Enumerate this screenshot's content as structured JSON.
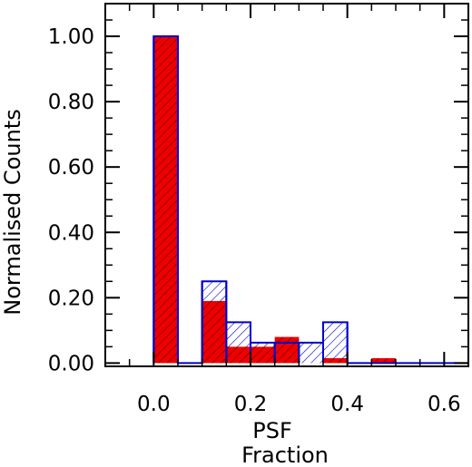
{
  "chart_data": {
    "type": "bar",
    "title": "",
    "xlabel": [
      "PSF",
      "Fraction"
    ],
    "ylabel": "Normalised Counts",
    "xlim": [
      -0.1,
      0.65
    ],
    "ylim": [
      -0.01,
      1.1
    ],
    "x_ticks": [
      0.0,
      0.2,
      0.4,
      0.6
    ],
    "x_tick_labels": [
      "0.0",
      "0.2",
      "0.4",
      "0.6"
    ],
    "y_ticks": [
      0.0,
      0.2,
      0.4,
      0.6,
      0.8,
      1.0
    ],
    "y_tick_labels": [
      "0.00",
      "0.20",
      "0.40",
      "0.60",
      "0.80",
      "1.00"
    ],
    "bin_width": 0.05,
    "bins": [
      0.0,
      0.05,
      0.1,
      0.15,
      0.2,
      0.25,
      0.3,
      0.35,
      0.4,
      0.45,
      0.5,
      0.55,
      0.6
    ],
    "series": [
      {
        "style": "blue-hatched-outline",
        "color": "#0000cc",
        "values": [
          1.0,
          0.0,
          0.25,
          0.125,
          0.0625,
          0.0625,
          0.0625,
          0.125,
          0.0,
          0.0,
          0.0,
          0.0,
          0.0
        ]
      },
      {
        "style": "red-filled",
        "color": "#ee0000",
        "values": [
          1.0,
          0.0,
          0.19,
          0.05,
          0.05,
          0.08,
          0.0,
          0.015,
          0.0,
          0.015,
          0.0,
          0.0,
          0.0
        ]
      }
    ]
  }
}
